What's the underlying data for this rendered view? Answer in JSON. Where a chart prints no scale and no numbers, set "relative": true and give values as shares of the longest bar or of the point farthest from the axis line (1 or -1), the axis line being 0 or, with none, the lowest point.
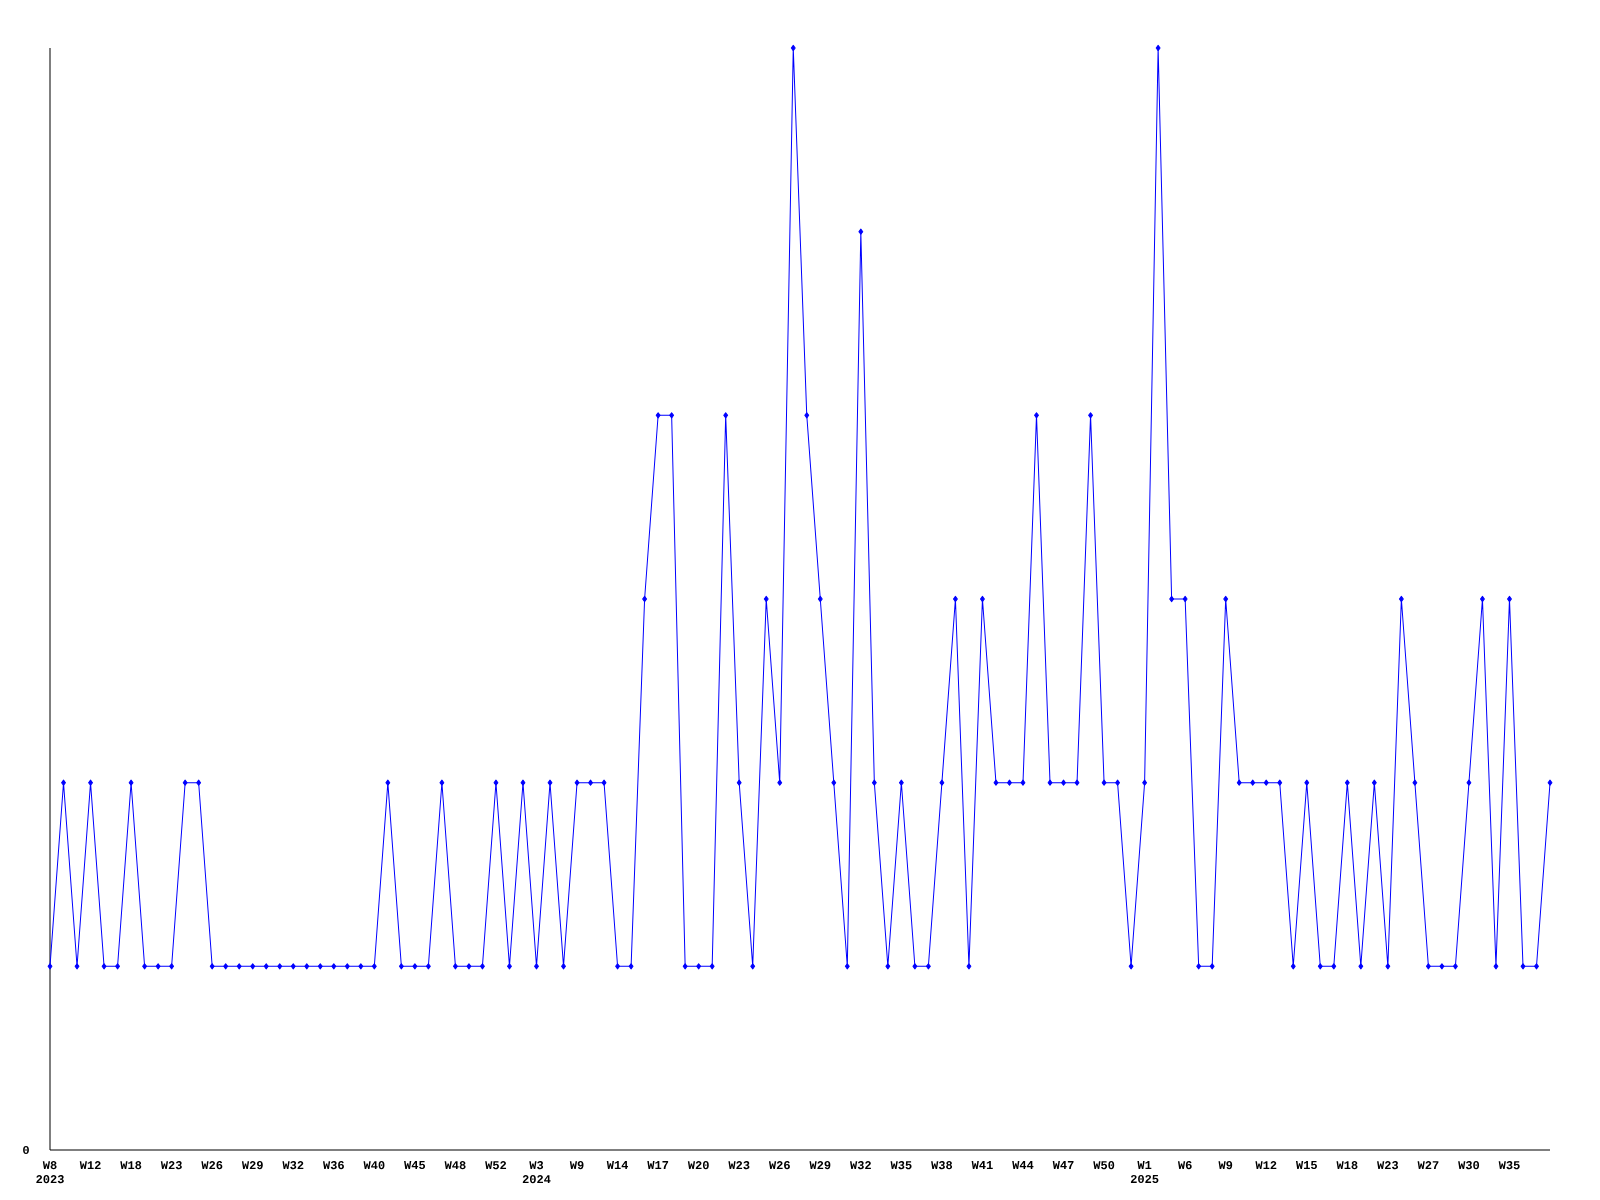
{
  "chart_data": {
    "type": "line",
    "relative": true,
    "color": "#0000ff",
    "marker": "diamond",
    "annotations": [
      "0"
    ],
    "categories": [
      "W8 2023",
      null,
      null,
      "W12",
      null,
      null,
      "W18",
      null,
      null,
      "W23",
      null,
      null,
      "W26",
      null,
      null,
      "W29",
      null,
      null,
      "W32",
      null,
      null,
      "W36",
      null,
      null,
      "W40",
      null,
      null,
      "W45",
      null,
      null,
      "W48",
      null,
      null,
      "W52",
      null,
      null,
      "W3 2024",
      null,
      null,
      "W9",
      null,
      null,
      "W14",
      null,
      null,
      "W17",
      null,
      null,
      "W20",
      null,
      null,
      "W23",
      null,
      null,
      "W26",
      null,
      null,
      "W29",
      null,
      null,
      "W32",
      null,
      null,
      "W35",
      null,
      null,
      "W38",
      null,
      null,
      "W41",
      null,
      null,
      "W44",
      null,
      null,
      "W47",
      null,
      null,
      "W50",
      null,
      null,
      "W1 2025",
      null,
      null,
      "W6",
      null,
      null,
      "W9",
      null,
      null,
      "W12",
      null,
      null,
      "W15",
      null,
      null,
      "W18",
      null,
      null,
      "W23",
      null,
      null,
      "W27",
      null,
      null,
      "W30",
      null,
      null,
      "W35",
      null,
      null,
      null
    ],
    "values": [
      0.1667,
      0.3333,
      0.1667,
      0.3333,
      0.1667,
      0.1667,
      0.3333,
      0.1667,
      0.1667,
      0.1667,
      0.3333,
      0.3333,
      0.1667,
      0.1667,
      0.1667,
      0.1667,
      0.1667,
      0.1667,
      0.1667,
      0.1667,
      0.1667,
      0.1667,
      0.1667,
      0.1667,
      0.1667,
      0.3333,
      0.1667,
      0.1667,
      0.1667,
      0.3333,
      0.1667,
      0.1667,
      0.1667,
      0.3333,
      0.1667,
      0.3333,
      0.1667,
      0.3333,
      0.1667,
      0.3333,
      0.3333,
      0.3333,
      0.1667,
      0.1667,
      0.5,
      0.6667,
      0.6667,
      0.1667,
      0.1667,
      0.1667,
      0.6667,
      0.3333,
      0.1667,
      0.5,
      0.3333,
      1,
      0.6667,
      0.5,
      0.3333,
      0.1667,
      0.8333,
      0.3333,
      0.1667,
      0.3333,
      0.1667,
      0.1667,
      0.3333,
      0.5,
      0.1667,
      0.5,
      0.3333,
      0.3333,
      0.3333,
      0.6667,
      0.3333,
      0.3333,
      0.3333,
      0.6667,
      0.3333,
      0.3333,
      0.1667,
      0.3333,
      1,
      0.5,
      0.5,
      0.1667,
      0.1667,
      0.5,
      0.3333,
      0.3333,
      0.3333,
      0.3333,
      0.1667,
      0.3333,
      0.1667,
      0.1667,
      0.3333,
      0.1667,
      0.3333,
      0.1667,
      0.5,
      0.3333,
      0.1667,
      0.1667,
      0.1667,
      0.3333,
      0.5,
      0.1667,
      0.5,
      0.1667,
      0.1667,
      0.3333
    ]
  }
}
